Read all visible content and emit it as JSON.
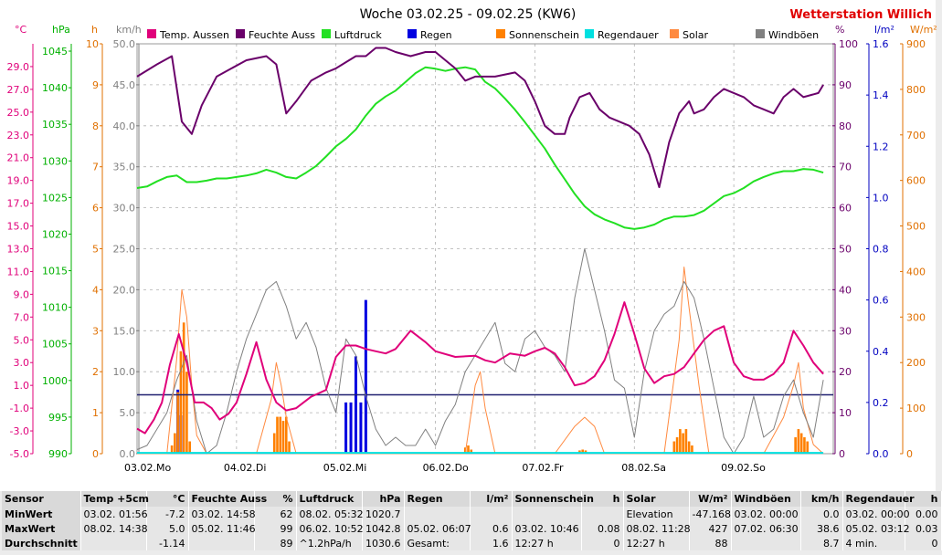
{
  "chart_data": {
    "type": "line",
    "title": "Woche 03.02.25 - 09.02.25 (KW6)",
    "brand": "Wetterstation Willich",
    "x_days": [
      "03.02.",
      "04.02.",
      "05.02.",
      "06.02.",
      "07.02.",
      "08.02.",
      "09.02."
    ],
    "x_weekdays": [
      "Mo",
      "Di",
      "Mi",
      "Do",
      "Fr",
      "Sa",
      "So"
    ],
    "axes": [
      {
        "unit": "°C",
        "color": "#e0007a",
        "range": [
          -5,
          31
        ],
        "ticks": [
          "29.0",
          "27.0",
          "25.0",
          "23.0",
          "21.0",
          "19.0",
          "17.0",
          "15.0",
          "13.0",
          "11.0",
          "9.0",
          "7.0",
          "5.0",
          "3.0",
          "1.0",
          "-1.0",
          "-3.0",
          "-5.0"
        ]
      },
      {
        "unit": "hPa",
        "color": "#00b000",
        "range": [
          990,
          1046
        ],
        "ticks": [
          "1045",
          "1040",
          "1035",
          "1030",
          "1025",
          "1020",
          "1015",
          "1010",
          "1005",
          "1000",
          "995",
          "990"
        ]
      },
      {
        "unit": "h",
        "color": "#e07000",
        "range": [
          0,
          10
        ],
        "ticks": [
          "10",
          "9",
          "8",
          "7",
          "6",
          "5",
          "4",
          "3",
          "2",
          "1",
          "0"
        ]
      },
      {
        "unit": "km/h",
        "color": "#808080",
        "range": [
          0,
          50
        ],
        "ticks": [
          "50.0",
          "45.0",
          "40.0",
          "35.0",
          "30.0",
          "25.0",
          "20.0",
          "15.0",
          "10.0",
          "5.0",
          "0.0"
        ]
      },
      {
        "unit": "%",
        "color": "#6a006a",
        "range": [
          0,
          100
        ],
        "ticks": [
          "100",
          "90",
          "80",
          "70",
          "60",
          "50",
          "40",
          "30",
          "20",
          "10",
          "0"
        ]
      },
      {
        "unit": "l/m²",
        "color": "#0000c0",
        "range": [
          0,
          1.6
        ],
        "ticks": [
          "1.6",
          "1.4",
          "1.2",
          "1.0",
          "0.8",
          "0.6",
          "0.4",
          "0.2",
          "0.0"
        ]
      },
      {
        "unit": "W/m²",
        "color": "#e07000",
        "range": [
          0,
          900
        ],
        "ticks": [
          "900",
          "800",
          "700",
          "600",
          "500",
          "400",
          "300",
          "200",
          "100",
          "0"
        ]
      }
    ],
    "legend": [
      {
        "label": "Temp. Aussen",
        "color": "#e0007a"
      },
      {
        "label": "Feuchte Auss",
        "color": "#6a006a"
      },
      {
        "label": "Luftdruck",
        "color": "#22e022"
      },
      {
        "label": "Regen",
        "color": "#0000e0"
      },
      {
        "label": "Sonnenschein",
        "color": "#ff8000"
      },
      {
        "label": "Regendauer",
        "color": "#00e0e0"
      },
      {
        "label": "Solar",
        "color": "#ff8a40"
      },
      {
        "label": "Windböen",
        "color": "#808080"
      }
    ],
    "grid": true,
    "series": [
      {
        "name": "Temp. Aussen",
        "axis": "°C",
        "color": "#e0007a",
        "x": [
          0,
          0.08,
          0.17,
          0.25,
          0.33,
          0.42,
          0.5,
          0.58,
          0.67,
          0.75,
          0.83,
          0.92,
          1.0,
          1.1,
          1.2,
          1.3,
          1.4,
          1.5,
          1.6,
          1.75,
          1.9,
          2.0,
          2.1,
          2.2,
          2.3,
          2.4,
          2.5,
          2.6,
          2.75,
          2.9,
          3.0,
          3.2,
          3.4,
          3.5,
          3.6,
          3.75,
          3.9,
          4.0,
          4.1,
          4.2,
          4.3,
          4.4,
          4.5,
          4.6,
          4.7,
          4.8,
          4.9,
          5.0,
          5.1,
          5.2,
          5.3,
          5.4,
          5.5,
          5.6,
          5.7,
          5.8,
          5.9,
          6.0,
          6.1,
          6.2,
          6.3,
          6.4,
          6.5,
          6.6,
          6.7,
          6.8,
          6.9
        ],
        "y": [
          -2.8,
          -3.2,
          -2.0,
          -0.5,
          2.8,
          5.5,
          3.0,
          -0.5,
          -0.5,
          -1.0,
          -2.0,
          -1.5,
          -0.5,
          2.0,
          4.8,
          1.5,
          -0.5,
          -1.2,
          -1.0,
          0,
          0.6,
          3.5,
          4.5,
          4.5,
          4.2,
          4.0,
          3.8,
          4.2,
          5.8,
          4.8,
          4.0,
          3.5,
          3.6,
          3.2,
          3.0,
          3.8,
          3.6,
          4.0,
          4.3,
          3.8,
          2.6,
          1.0,
          1.2,
          1.8,
          3.2,
          5.5,
          8.3,
          5.5,
          2.5,
          1.2,
          1.8,
          2.0,
          2.6,
          3.8,
          5.0,
          5.8,
          6.2,
          3.0,
          1.8,
          1.5,
          1.5,
          2.0,
          3.0,
          5.8,
          4.5,
          3.0,
          2.0
        ]
      },
      {
        "name": "Feuchte Auss",
        "axis": "%",
        "color": "#6a006a",
        "x": [
          0,
          0.2,
          0.35,
          0.45,
          0.55,
          0.65,
          0.8,
          0.95,
          1.1,
          1.3,
          1.4,
          1.5,
          1.6,
          1.75,
          1.9,
          2.0,
          2.2,
          2.3,
          2.4,
          2.5,
          2.6,
          2.75,
          2.9,
          3.0,
          3.1,
          3.2,
          3.3,
          3.4,
          3.6,
          3.8,
          3.9,
          4.0,
          4.1,
          4.2,
          4.3,
          4.35,
          4.45,
          4.55,
          4.65,
          4.75,
          4.85,
          4.95,
          5.05,
          5.15,
          5.25,
          5.35,
          5.45,
          5.55,
          5.6,
          5.7,
          5.8,
          5.9,
          6.0,
          6.1,
          6.2,
          6.3,
          6.4,
          6.5,
          6.6,
          6.7,
          6.85,
          6.9
        ],
        "y": [
          92,
          95,
          97,
          81,
          78,
          85,
          92,
          94,
          96,
          97,
          95,
          83,
          86,
          91,
          93,
          94,
          97,
          97,
          99,
          99,
          98,
          97,
          98,
          98,
          96,
          94,
          91,
          92,
          92,
          93,
          91,
          86,
          80,
          78,
          78,
          82,
          87,
          88,
          84,
          82,
          81,
          80,
          78,
          73,
          65,
          76,
          83,
          86,
          83,
          84,
          87,
          89,
          88,
          87,
          85,
          84,
          83,
          87,
          89,
          87,
          88,
          90
        ]
      },
      {
        "name": "Luftdruck",
        "axis": "hPa",
        "color": "#22e022",
        "x": [
          0,
          0.1,
          0.2,
          0.3,
          0.4,
          0.5,
          0.6,
          0.7,
          0.8,
          0.9,
          1.0,
          1.1,
          1.2,
          1.3,
          1.4,
          1.5,
          1.6,
          1.7,
          1.8,
          1.9,
          2.0,
          2.1,
          2.2,
          2.3,
          2.4,
          2.5,
          2.6,
          2.7,
          2.8,
          2.9,
          3.0,
          3.1,
          3.2,
          3.3,
          3.4,
          3.5,
          3.6,
          3.7,
          3.8,
          3.9,
          4.0,
          4.1,
          4.2,
          4.3,
          4.4,
          4.5,
          4.6,
          4.7,
          4.8,
          4.9,
          5.0,
          5.1,
          5.2,
          5.3,
          5.4,
          5.5,
          5.6,
          5.7,
          5.8,
          5.9,
          6.0,
          6.1,
          6.2,
          6.3,
          6.4,
          6.5,
          6.6,
          6.7,
          6.8,
          6.9
        ],
        "y": [
          1026.3,
          1026.5,
          1027.2,
          1027.8,
          1028.0,
          1027.1,
          1027.1,
          1027.3,
          1027.6,
          1027.6,
          1027.8,
          1028.0,
          1028.3,
          1028.8,
          1028.4,
          1027.8,
          1027.6,
          1028.4,
          1029.3,
          1030.6,
          1032.0,
          1033.0,
          1034.3,
          1036.2,
          1037.8,
          1038.8,
          1039.6,
          1040.8,
          1042.0,
          1042.8,
          1042.6,
          1042.3,
          1042.6,
          1042.8,
          1042.5,
          1040.8,
          1039.9,
          1038.5,
          1037.0,
          1035.3,
          1033.5,
          1031.7,
          1029.5,
          1027.5,
          1025.5,
          1023.8,
          1022.7,
          1022.0,
          1021.5,
          1020.9,
          1020.7,
          1020.9,
          1021.3,
          1022.0,
          1022.4,
          1022.4,
          1022.6,
          1023.2,
          1024.2,
          1025.2,
          1025.6,
          1026.3,
          1027.2,
          1027.8,
          1028.3,
          1028.6,
          1028.6,
          1028.9,
          1028.8,
          1028.4
        ]
      },
      {
        "name": "Windböen",
        "axis": "km/h",
        "color": "#808080",
        "x": [
          0,
          0.1,
          0.2,
          0.3,
          0.4,
          0.5,
          0.6,
          0.7,
          0.8,
          0.9,
          1.0,
          1.1,
          1.2,
          1.3,
          1.4,
          1.5,
          1.6,
          1.7,
          1.8,
          1.9,
          2.0,
          2.1,
          2.2,
          2.3,
          2.4,
          2.5,
          2.6,
          2.7,
          2.8,
          2.9,
          3.0,
          3.1,
          3.2,
          3.3,
          3.4,
          3.5,
          3.6,
          3.7,
          3.8,
          3.9,
          4.0,
          4.1,
          4.2,
          4.3,
          4.4,
          4.5,
          4.6,
          4.7,
          4.8,
          4.9,
          5.0,
          5.1,
          5.2,
          5.3,
          5.4,
          5.5,
          5.6,
          5.7,
          5.8,
          5.9,
          6.0,
          6.1,
          6.2,
          6.3,
          6.4,
          6.5,
          6.6,
          6.7,
          6.8,
          6.9
        ],
        "y": [
          0.5,
          1,
          3,
          5,
          9,
          12,
          4,
          0,
          1,
          5,
          10,
          14,
          17,
          20,
          21,
          18,
          14,
          16,
          13,
          8,
          5,
          14,
          12,
          7,
          3,
          1,
          2,
          1,
          1,
          3,
          1,
          4,
          6,
          10,
          12,
          14,
          16,
          11,
          10,
          14,
          15,
          13,
          12,
          10,
          19,
          25,
          20,
          15,
          9,
          8,
          2,
          10,
          15,
          17,
          18,
          21,
          19,
          14,
          8,
          2,
          0,
          2,
          7,
          2,
          3,
          7,
          9,
          5,
          2,
          9
        ]
      },
      {
        "name": "Solar",
        "axis": "W/m²",
        "color": "#ff8a40",
        "x": [
          0,
          0.3,
          0.4,
          0.45,
          0.5,
          0.55,
          0.6,
          0.7,
          1.2,
          1.35,
          1.4,
          1.45,
          1.5,
          1.6,
          2.2,
          3.3,
          3.4,
          3.45,
          3.5,
          3.6,
          4.2,
          4.4,
          4.5,
          4.6,
          4.7,
          5.3,
          5.45,
          5.5,
          5.55,
          5.65,
          5.75,
          6.3,
          6.5,
          6.6,
          6.65,
          6.7,
          6.8,
          6.9
        ],
        "y": [
          0,
          0,
          210,
          360,
          300,
          150,
          40,
          0,
          0,
          120,
          200,
          150,
          80,
          0,
          0,
          0,
          150,
          180,
          100,
          0,
          0,
          60,
          80,
          60,
          0,
          0,
          250,
          410,
          320,
          150,
          0,
          0,
          80,
          150,
          200,
          100,
          20,
          0
        ]
      },
      {
        "name": "Regendauer",
        "axis": "h",
        "color": "#00e0e0",
        "x": [
          0,
          6.9
        ],
        "y": [
          0.02,
          0.02
        ]
      }
    ],
    "bars": [
      {
        "name": "Regen",
        "axis": "l/m²",
        "color": "#0000e0",
        "x": [
          0.41,
          0.44,
          2.1,
          2.15,
          2.2,
          2.25,
          2.3
        ],
        "y": [
          0.25,
          0.15,
          0.2,
          0.2,
          0.38,
          0.2,
          0.6
        ]
      },
      {
        "name": "Sonnenschein",
        "axis": "h",
        "color": "#ff8000",
        "x": [
          0.35,
          0.38,
          0.41,
          0.44,
          0.47,
          0.5,
          0.53,
          1.38,
          1.41,
          1.44,
          1.47,
          1.5,
          1.53,
          3.3,
          3.33,
          3.36,
          4.45,
          4.48,
          4.51,
          5.4,
          5.43,
          5.46,
          5.49,
          5.52,
          5.55,
          5.58,
          6.62,
          6.65,
          6.68,
          6.71,
          6.74
        ],
        "y": [
          0.2,
          0.5,
          1.5,
          2.5,
          3.2,
          2.0,
          0.3,
          0.5,
          0.9,
          0.9,
          0.8,
          0.9,
          0.3,
          0.15,
          0.2,
          0.1,
          0.08,
          0.1,
          0.08,
          0.3,
          0.4,
          0.6,
          0.5,
          0.6,
          0.3,
          0.2,
          0.4,
          0.6,
          0.5,
          0.4,
          0.3
        ]
      }
    ],
    "threshold_line": {
      "axis": "l/m²",
      "value": 0.23,
      "color": "#202070"
    }
  },
  "summary": {
    "headers": [
      {
        "name": "Sensor",
        "unit": ""
      },
      {
        "name": "Temp +5cm",
        "unit": "°C"
      },
      {
        "name": "Feuchte Auss",
        "unit": "%"
      },
      {
        "name": "Luftdruck",
        "unit": "hPa"
      },
      {
        "name": "Regen",
        "unit": "l/m²"
      },
      {
        "name": "Sonnenschein",
        "unit": "h"
      },
      {
        "name": "Solar",
        "unit": "W/m²"
      },
      {
        "name": "Windböen",
        "unit": "km/h"
      },
      {
        "name": "Regendauer",
        "unit": "h"
      }
    ],
    "rows": [
      {
        "label": "MinWert",
        "cells": [
          [
            "03.02. 01:56",
            "-7.2"
          ],
          [
            "03.02. 14:58",
            "62"
          ],
          [
            "08.02. 05:32",
            "1020.7"
          ],
          [
            "",
            ""
          ],
          [
            "",
            ""
          ],
          [
            "Elevation",
            "-47.168"
          ],
          [
            "03.02. 00:00",
            "0.0"
          ],
          [
            "03.02. 00:00",
            "0.00"
          ]
        ]
      },
      {
        "label": "MaxWert",
        "cells": [
          [
            "08.02. 14:38",
            "5.0"
          ],
          [
            "05.02. 11:46",
            "99"
          ],
          [
            "06.02. 10:52",
            "1042.8"
          ],
          [
            "05.02. 06:07",
            "0.6"
          ],
          [
            "03.02. 10:46",
            "0.08"
          ],
          [
            "08.02. 11:28",
            "427"
          ],
          [
            "07.02. 06:30",
            "38.6"
          ],
          [
            "05.02. 03:12",
            "0.03"
          ]
        ]
      },
      {
        "label": "Durchschnitt",
        "cells": [
          [
            "",
            "-1.14"
          ],
          [
            "",
            "89"
          ],
          [
            "^1.2hPa/h",
            "1030.6"
          ],
          [
            "Gesamt:",
            "1.6"
          ],
          [
            "12:27 h",
            "0"
          ],
          [
            "12:27 h",
            "88"
          ],
          [
            "",
            "8.7"
          ],
          [
            "4 min.",
            "0"
          ]
        ]
      }
    ]
  }
}
